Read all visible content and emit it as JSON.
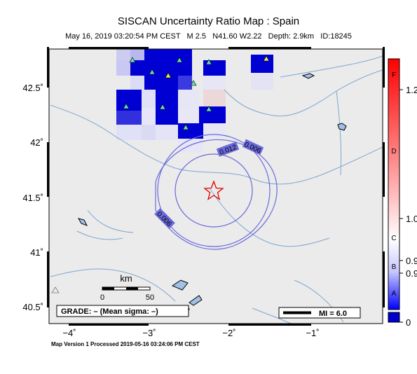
{
  "map": {
    "title": "SISCAN Uncertainty Ratio Map : Spain",
    "subtitle": "May 16, 2019 03:20:54 PM CEST   M 2.5   N41.60 W2.22   Depth: 2.9km   ID:18245",
    "footer": "Map Version 1 Processed 2019-05-16 03:24:06 PM CEST",
    "lat_ticks": [
      "42.5˚",
      "42˚",
      "41.5˚",
      "41˚",
      "40.5˚"
    ],
    "lon_ticks": [
      "−4˚",
      "−3˚",
      "−2˚",
      "−1˚"
    ],
    "scale_bar": {
      "unit": "km",
      "label_start": "0",
      "label_end": "50"
    },
    "grade_label": "GRADE: – (Mean sigma: –)",
    "mi_label": "MI = 6.0",
    "contour_labels": [
      "0.006",
      "0.012",
      "0.006"
    ],
    "epicenter_marker": "star-icon",
    "station_marker": "triangle-icon"
  },
  "colorbar": {
    "grade_letters": [
      "F",
      "D",
      "C",
      "B",
      "A"
    ],
    "values": [
      "1.2",
      "1.0",
      "0.9",
      "0.9",
      "0"
    ],
    "colors": {
      "top": "#ff0000",
      "mid": "#ffffff",
      "low": "#0000ff",
      "zero": "#0000cc"
    }
  },
  "colors": {
    "land": "#ebebeb",
    "rivers": "#7fa6cf",
    "contour": "#6a6adb",
    "cell_dark": "#0000d2",
    "station_green": "#63ddb0",
    "station_yellow": "#eaea50"
  }
}
